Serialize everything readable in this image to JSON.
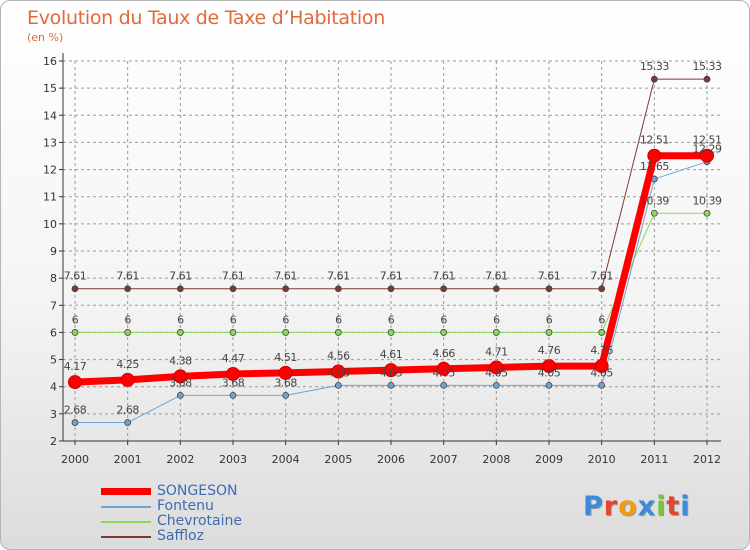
{
  "title": "Evolution du Taux de Taxe d’Habitation",
  "subtitle": "(en %)",
  "logo": {
    "letters": [
      "P",
      "r",
      "o",
      "x",
      "i",
      "t",
      "i"
    ],
    "colors": [
      "#3f8ad8",
      "#e8442b",
      "#f39c12",
      "#3f8ad8",
      "#7cc242",
      "#e8442b",
      "#3f8ad8"
    ]
  },
  "chart_data": {
    "type": "line",
    "x": [
      2000,
      2001,
      2002,
      2003,
      2004,
      2005,
      2006,
      2007,
      2008,
      2009,
      2010,
      2011,
      2012
    ],
    "ylim": [
      2,
      16
    ],
    "yticks": [
      2,
      3,
      4,
      5,
      6,
      7,
      8,
      9,
      10,
      11,
      12,
      13,
      14,
      15,
      16
    ],
    "grid": true,
    "legend": "bottom-left",
    "series": [
      {
        "name": "SONGESON",
        "color": "#ff0000",
        "width": 7,
        "values": [
          4.17,
          4.25,
          4.38,
          4.47,
          4.51,
          4.56,
          4.61,
          4.66,
          4.71,
          4.76,
          4.76,
          12.51,
          12.51
        ],
        "labels": [
          "4.17",
          "4.25",
          "4.38",
          "4.47",
          "4.51",
          "4.56",
          "4.61",
          "4.66",
          "4.71",
          "4.76",
          "4.76",
          "12.51",
          "12.51"
        ]
      },
      {
        "name": "Fontenu",
        "color": "#6ea3d0",
        "width": 1,
        "values": [
          2.68,
          2.68,
          3.68,
          3.68,
          3.68,
          4.05,
          4.05,
          4.05,
          4.05,
          4.05,
          4.05,
          11.65,
          12.29
        ],
        "labels": [
          "2.68",
          "2.68",
          "3.68",
          "3.68",
          "3.68",
          "4.05",
          "4.05",
          "4.05",
          "4.05",
          "4.05",
          "4.05",
          "11.65",
          "12.29"
        ]
      },
      {
        "name": "Chevrotaine",
        "color": "#8cd85a",
        "width": 1,
        "values": [
          6,
          6,
          6,
          6,
          6,
          6,
          6,
          6,
          6,
          6,
          6,
          10.39,
          10.39
        ],
        "labels": [
          "6",
          "6",
          "6",
          "6",
          "6",
          "6",
          "6",
          "6",
          "6",
          "6",
          "6",
          "10.39",
          "10.39"
        ]
      },
      {
        "name": "Saffloz",
        "color": "#7b3a35",
        "width": 1,
        "values": [
          7.61,
          7.61,
          7.61,
          7.61,
          7.61,
          7.61,
          7.61,
          7.61,
          7.61,
          7.61,
          7.61,
          15.33,
          15.33
        ],
        "labels": [
          "7.61",
          "7.61",
          "7.61",
          "7.61",
          "7.61",
          "7.61",
          "7.61",
          "7.61",
          "7.61",
          "7.61",
          "7.61",
          "15.33",
          "15.33"
        ]
      }
    ]
  }
}
